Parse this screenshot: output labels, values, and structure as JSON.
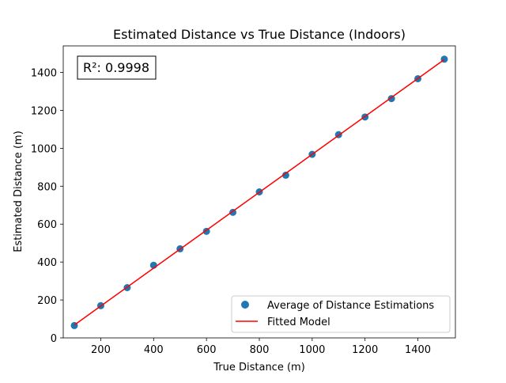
{
  "chart_data": {
    "type": "scatter",
    "title": "Estimated Distance vs True Distance (Indoors)",
    "xlabel": "True Distance (m)",
    "ylabel": "Estimated Distance (m)",
    "xlim": [
      58,
      1542
    ],
    "ylim": [
      0,
      1540
    ],
    "xticks": [
      200,
      400,
      600,
      800,
      1000,
      1200,
      1400
    ],
    "yticks": [
      0,
      200,
      400,
      600,
      800,
      1000,
      1200,
      1400
    ],
    "grid": false,
    "legend_position": "lower-right",
    "annotation": "R²: 0.9998",
    "series": [
      {
        "name": "Average of Distance Estimations",
        "kind": "scatter",
        "color": "#1f77b4",
        "x": [
          100,
          200,
          300,
          400,
          500,
          600,
          700,
          800,
          900,
          1000,
          1100,
          1200,
          1300,
          1400,
          1500
        ],
        "y": [
          65,
          170,
          265,
          383,
          470,
          562,
          662,
          770,
          858,
          968,
          1072,
          1165,
          1262,
          1367,
          1470
        ]
      },
      {
        "name": "Fitted Model",
        "kind": "line",
        "color": "#ff0000",
        "x": [
          100,
          1500
        ],
        "y": [
          68,
          1468
        ]
      }
    ]
  }
}
